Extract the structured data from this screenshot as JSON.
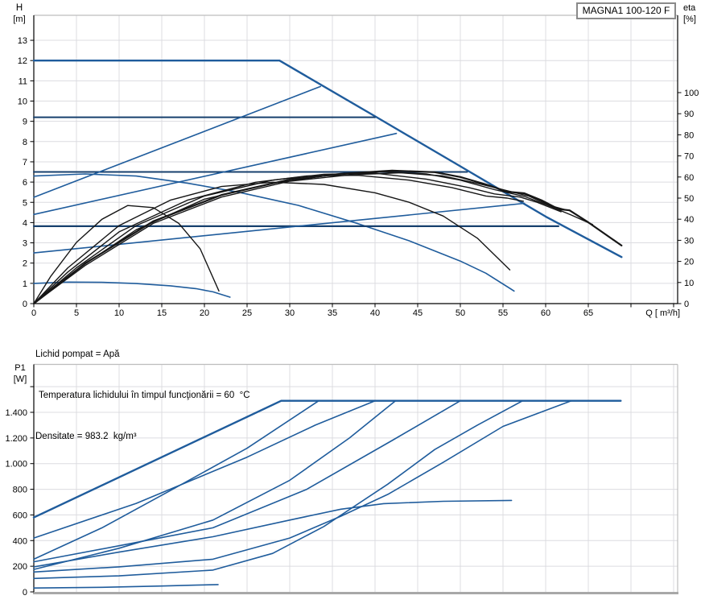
{
  "title_box": {
    "label": "MAGNA1 100-120 F"
  },
  "info_lines": [
    "Lichid pompat = Apă",
    "Temperatura lichidului în timpul funcţionării = 60  °C",
    "Densitate = 983.2  kg/m³"
  ],
  "colors": {
    "curve_blue": "#1f5c9c",
    "curve_blue_dark": "#17406e",
    "curve_black": "#161616",
    "grid": "#dcdce0",
    "frame_gray": "#bdbdbd",
    "bottom_bar_gray": "#a8a8a8",
    "axis_black": "#000000"
  },
  "chart_data": [
    {
      "id": "qh",
      "type": "line",
      "title": "MAGNA1 100-120 F",
      "x_axis": {
        "label": "Q [ m³/h]",
        "ticks": [
          0,
          5,
          10,
          15,
          20,
          25,
          30,
          35,
          40,
          45,
          50,
          55,
          60,
          65
        ],
        "unlabeled_ticks": [
          70,
          75
        ],
        "range": [
          0,
          75.5
        ]
      },
      "y_left": {
        "label": "H",
        "unit": "[m]",
        "ticks": [
          0,
          1,
          2,
          3,
          4,
          5,
          6,
          7,
          8,
          9,
          10,
          11,
          12,
          13
        ],
        "range": [
          0,
          14.2
        ]
      },
      "y_right": {
        "label": "eta",
        "unit": "[%]",
        "ticks": [
          0,
          10,
          20,
          30,
          40,
          50,
          60,
          70,
          80,
          90,
          100
        ],
        "range": [
          0,
          136
        ]
      },
      "series": [
        {
          "name": "qh-max-speed",
          "color": "blue",
          "width": 2.4,
          "axis": "H",
          "points": [
            [
              0,
              12
            ],
            [
              28.8,
              12
            ],
            [
              40,
              9.25
            ],
            [
              50,
              6.78
            ],
            [
              60,
              4.3
            ],
            [
              68.9,
              2.3
            ]
          ]
        },
        {
          "name": "qh-intermediate",
          "color": "blue",
          "width": 1.6,
          "axis": "H",
          "points": [
            [
              0,
              6.3
            ],
            [
              6,
              6.4
            ],
            [
              12,
              6.3
            ],
            [
              18,
              5.95
            ],
            [
              24,
              5.5
            ],
            [
              31,
              4.85
            ],
            [
              38,
              3.95
            ],
            [
              44,
              3.1
            ],
            [
              50,
              2.1
            ],
            [
              53,
              1.5
            ],
            [
              56.3,
              0.62
            ]
          ]
        },
        {
          "name": "qh-min-speed",
          "color": "blue",
          "width": 1.6,
          "axis": "H",
          "points": [
            [
              0,
              1.0
            ],
            [
              4,
              1.06
            ],
            [
              8,
              1.05
            ],
            [
              12,
              0.99
            ],
            [
              16,
              0.88
            ],
            [
              19,
              0.74
            ],
            [
              21,
              0.58
            ],
            [
              23,
              0.32
            ]
          ]
        },
        {
          "name": "const-pressure-9.2",
          "color": "blue_dark",
          "width": 2.0,
          "axis": "H",
          "points": [
            [
              0,
              9.2
            ],
            [
              40,
              9.2
            ]
          ]
        },
        {
          "name": "const-pressure-6.5",
          "color": "blue_dark",
          "width": 2.0,
          "axis": "H",
          "points": [
            [
              0,
              6.5
            ],
            [
              50.8,
              6.5
            ]
          ]
        },
        {
          "name": "const-pressure-3.8",
          "color": "blue_dark",
          "width": 2.2,
          "axis": "H",
          "points": [
            [
              0,
              3.82
            ],
            [
              61.5,
              3.82
            ]
          ]
        },
        {
          "name": "prop-pressure-1",
          "color": "blue",
          "width": 1.6,
          "axis": "H",
          "points": [
            [
              0,
              5.25
            ],
            [
              33.6,
              10.72
            ]
          ]
        },
        {
          "name": "prop-pressure-2",
          "color": "blue",
          "width": 1.6,
          "axis": "H",
          "points": [
            [
              0,
              4.4
            ],
            [
              42.5,
              8.4
            ]
          ]
        },
        {
          "name": "prop-pressure-3",
          "color": "blue",
          "width": 1.6,
          "axis": "H",
          "points": [
            [
              0,
              2.5
            ],
            [
              57.5,
              4.95
            ]
          ]
        },
        {
          "name": "eta-min-speed",
          "color": "black",
          "width": 1.4,
          "axis": "eta",
          "points": [
            [
              0,
              0
            ],
            [
              2,
              13
            ],
            [
              5,
              29
            ],
            [
              8,
              40
            ],
            [
              11,
              46.5
            ],
            [
              14,
              45.5
            ],
            [
              17,
              38
            ],
            [
              19.5,
              26
            ],
            [
              21.7,
              6
            ]
          ]
        },
        {
          "name": "eta-intermediate",
          "color": "black",
          "width": 1.4,
          "axis": "eta",
          "points": [
            [
              0,
              0
            ],
            [
              4,
              17
            ],
            [
              10,
              37
            ],
            [
              16,
              49
            ],
            [
              22,
              55.5
            ],
            [
              28,
              57.5
            ],
            [
              34,
              56.5
            ],
            [
              40,
              52.5
            ],
            [
              44,
              48
            ],
            [
              48,
              41.5
            ],
            [
              52,
              31
            ],
            [
              55.8,
              16
            ]
          ]
        },
        {
          "name": "eta-a",
          "color": "black",
          "width": 1.4,
          "axis": "eta",
          "points": [
            [
              0,
              0
            ],
            [
              4,
              15
            ],
            [
              10,
              34
            ],
            [
              18,
              49
            ],
            [
              26,
              57.5
            ],
            [
              32,
              60.5
            ],
            [
              38,
              60.8
            ],
            [
              44,
              58.5
            ],
            [
              49,
              55
            ],
            [
              53,
              51
            ],
            [
              55.5,
              50
            ],
            [
              57.4,
              48.5
            ]
          ]
        },
        {
          "name": "eta-b",
          "color": "black",
          "width": 1.4,
          "axis": "eta",
          "points": [
            [
              0,
              0
            ],
            [
              5,
              17
            ],
            [
              12,
              37
            ],
            [
              20,
              51
            ],
            [
              28,
              58.5
            ],
            [
              34,
              61.3
            ],
            [
              40,
              61.8
            ],
            [
              46,
              59
            ],
            [
              51,
              55
            ],
            [
              54,
              52
            ],
            [
              57,
              50.5
            ],
            [
              59,
              48
            ],
            [
              61.8,
              43.5
            ]
          ]
        },
        {
          "name": "eta-c",
          "color": "black",
          "width": 1.4,
          "axis": "eta",
          "points": [
            [
              0,
              0
            ],
            [
              5,
              16
            ],
            [
              12,
              35
            ],
            [
              20,
              49.5
            ],
            [
              28,
              57
            ],
            [
              35,
              61
            ],
            [
              41,
              62.5
            ],
            [
              46,
              61.5
            ],
            [
              50,
              58.5
            ],
            [
              54,
              54
            ],
            [
              57.5,
              50.8
            ],
            [
              60,
              47
            ],
            [
              63,
              42
            ],
            [
              65.5,
              37.5
            ]
          ]
        },
        {
          "name": "eta-d",
          "color": "black",
          "width": 1.4,
          "axis": "eta",
          "points": [
            [
              0,
              0
            ],
            [
              6,
              18
            ],
            [
              14,
              38
            ],
            [
              22,
              50.5
            ],
            [
              30,
              58
            ],
            [
              37,
              61
            ],
            [
              43,
              62
            ],
            [
              48,
              60.5
            ],
            [
              52,
              57
            ],
            [
              55,
              54
            ],
            [
              58,
              51
            ],
            [
              60.5,
              46.5
            ],
            [
              62.3,
              44.5
            ]
          ]
        },
        {
          "name": "eta-max-speed",
          "color": "black",
          "width": 2.2,
          "axis": "eta",
          "points": [
            [
              0,
              0
            ],
            [
              6,
              19
            ],
            [
              14,
              39
            ],
            [
              22,
              51.5
            ],
            [
              30,
              58.8
            ],
            [
              36,
              61.5
            ],
            [
              42,
              63
            ],
            [
              47,
              62.3
            ],
            [
              50,
              60
            ],
            [
              53,
              56.5
            ],
            [
              55.5,
              53
            ],
            [
              57.5,
              52.3
            ],
            [
              59.5,
              49
            ],
            [
              61.5,
              44.8
            ],
            [
              62.8,
              44.2
            ],
            [
              65,
              38.5
            ],
            [
              68.9,
              27.5
            ]
          ]
        }
      ]
    },
    {
      "id": "p1",
      "type": "line",
      "x_axis": {
        "label": "",
        "ticks": [],
        "range": [
          0,
          75.5
        ]
      },
      "y_left": {
        "label": "P1",
        "unit": "[W]",
        "tick_values": [
          0,
          200,
          400,
          600,
          800,
          1000,
          1200,
          1400
        ],
        "tick_labels": [
          "0",
          "200",
          "400",
          "600",
          "800",
          "1.000",
          "1.200",
          "1.400"
        ],
        "unlabeled_ticks": [
          1600
        ],
        "range": [
          0,
          1775
        ]
      },
      "series": [
        {
          "name": "p1-max-speed",
          "color": "blue",
          "width": 2.4,
          "axis": "P",
          "points": [
            [
              0,
              580
            ],
            [
              29,
              1490
            ],
            [
              68.8,
              1490
            ]
          ]
        },
        {
          "name": "p1-const-9.2",
          "color": "blue",
          "width": 1.6,
          "axis": "P",
          "points": [
            [
              0,
              420
            ],
            [
              12,
              690
            ],
            [
              25,
              1050
            ],
            [
              33,
              1300
            ],
            [
              40,
              1490
            ]
          ]
        },
        {
          "name": "p1-prop-1",
          "color": "blue",
          "width": 1.6,
          "axis": "P",
          "points": [
            [
              0,
              255
            ],
            [
              8,
              500
            ],
            [
              16,
              790
            ],
            [
              25,
              1120
            ],
            [
              33.4,
              1490
            ]
          ]
        },
        {
          "name": "p1-const-6.5",
          "color": "blue",
          "width": 1.6,
          "axis": "P",
          "points": [
            [
              0,
              235
            ],
            [
              10,
              360
            ],
            [
              21,
              500
            ],
            [
              32,
              800
            ],
            [
              42,
              1180
            ],
            [
              50,
              1490
            ]
          ]
        },
        {
          "name": "p1-prop-2",
          "color": "blue",
          "width": 1.6,
          "axis": "P",
          "points": [
            [
              0,
              175
            ],
            [
              10,
              340
            ],
            [
              21,
              560
            ],
            [
              30,
              870
            ],
            [
              37,
              1200
            ],
            [
              42.4,
              1490
            ]
          ]
        },
        {
          "name": "p1-intermediate",
          "color": "blue",
          "width": 1.6,
          "axis": "P",
          "points": [
            [
              0,
              195
            ],
            [
              10,
              310
            ],
            [
              21,
              430
            ],
            [
              30,
              560
            ],
            [
              36,
              645
            ],
            [
              41,
              688
            ],
            [
              48,
              706
            ],
            [
              56,
              713
            ]
          ]
        },
        {
          "name": "p1-const-3.8",
          "color": "blue",
          "width": 1.6,
          "axis": "P",
          "points": [
            [
              0,
              155
            ],
            [
              10,
              195
            ],
            [
              21,
              255
            ],
            [
              30,
              420
            ],
            [
              36,
              590
            ],
            [
              41.5,
              760
            ],
            [
              48,
              1010
            ],
            [
              55,
              1290
            ],
            [
              63,
              1490
            ]
          ]
        },
        {
          "name": "p1-prop-3",
          "color": "blue",
          "width": 1.6,
          "axis": "P",
          "points": [
            [
              0,
              105
            ],
            [
              10,
              125
            ],
            [
              21,
              170
            ],
            [
              28,
              300
            ],
            [
              34,
              510
            ],
            [
              41.5,
              840
            ],
            [
              47,
              1110
            ],
            [
              52,
              1300
            ],
            [
              57.3,
              1490
            ]
          ]
        },
        {
          "name": "p1-min-speed",
          "color": "blue",
          "width": 1.6,
          "axis": "P",
          "points": [
            [
              0,
              30
            ],
            [
              8,
              36
            ],
            [
              15,
              46
            ],
            [
              19,
              53
            ],
            [
              21.6,
              57
            ]
          ]
        }
      ]
    }
  ]
}
